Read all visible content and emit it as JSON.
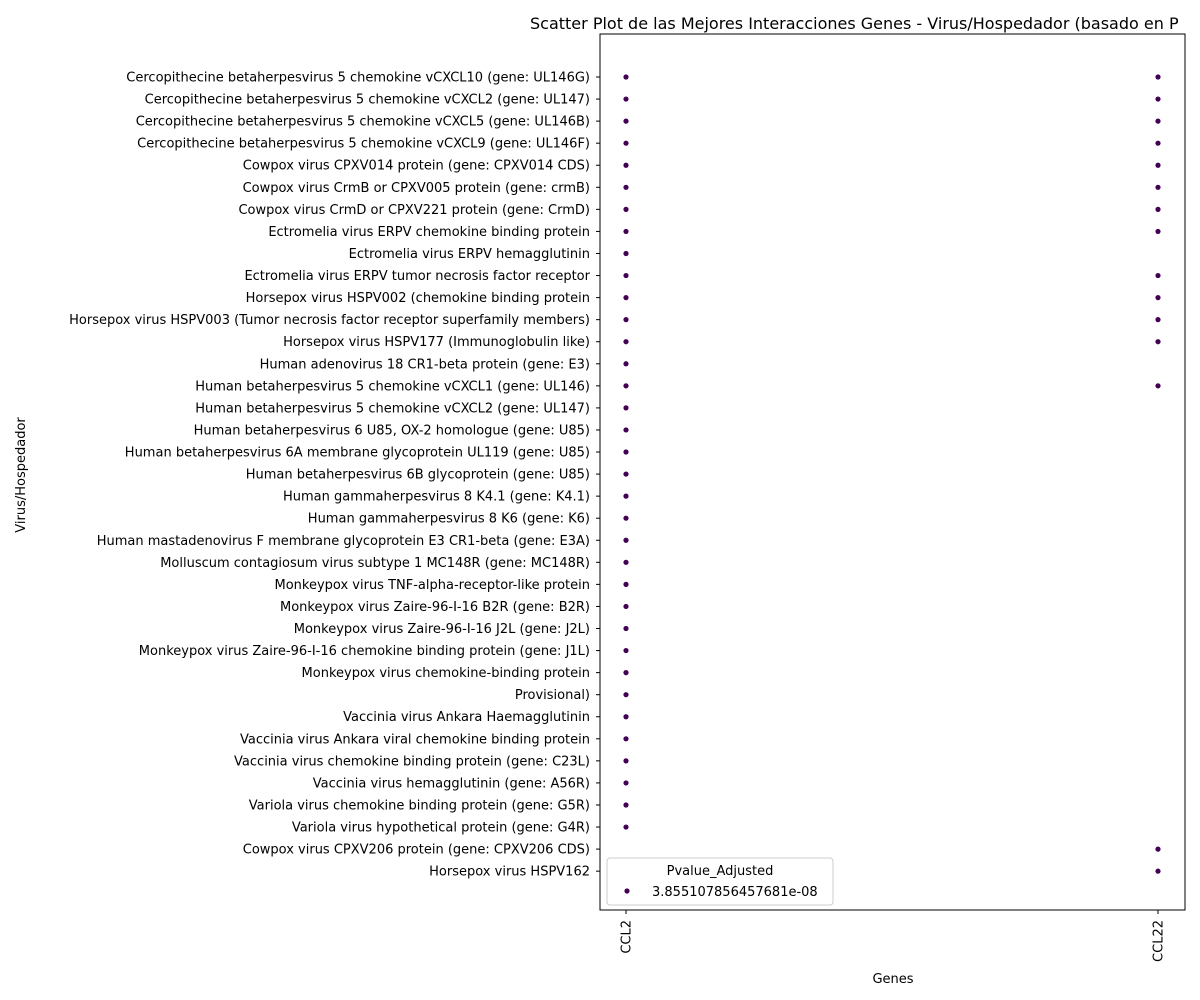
{
  "chart_data": {
    "type": "scatter",
    "title": "Scatter Plot de las Mejores Interacciones Genes - Virus/Hospedador (basado en P",
    "xlabel": "Genes",
    "ylabel": "Virus/Hospedador",
    "x_categories": [
      "CCL2",
      "CCL22"
    ],
    "y_categories": [
      "Cercopithecine betaherpesvirus 5 chemokine vCXCL10 (gene: UL146G)",
      "Cercopithecine betaherpesvirus 5 chemokine vCXCL2 (gene: UL147)",
      "Cercopithecine betaherpesvirus 5 chemokine vCXCL5 (gene: UL146B)",
      "Cercopithecine betaherpesvirus 5 chemokine vCXCL9 (gene: UL146F)",
      "Cowpox virus CPXV014 protein (gene: CPXV014 CDS)",
      "Cowpox virus CrmB or CPXV005 protein (gene: crmB)",
      "Cowpox virus CrmD or CPXV221 protein (gene: CrmD)",
      "Ectromelia virus ERPV chemokine binding protein",
      "Ectromelia virus ERPV hemagglutinin",
      "Ectromelia virus ERPV tumor necrosis factor receptor",
      "Horsepox virus HSPV002 (chemokine binding protein",
      "Horsepox virus HSPV003 (Tumor necrosis factor receptor superfamily members)",
      "Horsepox virus HSPV177 (Immunoglobulin like)",
      "Human adenovirus 18 CR1-beta protein (gene: E3)",
      "Human betaherpesvirus 5 chemokine vCXCL1 (gene: UL146)",
      "Human betaherpesvirus 5 chemokine vCXCL2 (gene: UL147)",
      "Human betaherpesvirus 6 U85, OX-2 homologue (gene: U85)",
      "Human betaherpesvirus 6A membrane glycoprotein UL119 (gene: U85)",
      "Human betaherpesvirus 6B glycoprotein (gene: U85)",
      "Human gammaherpesvirus 8 K4.1 (gene: K4.1)",
      "Human gammaherpesvirus 8 K6 (gene: K6)",
      "Human mastadenovirus F membrane glycoprotein E3 CR1-beta (gene: E3A)",
      "Molluscum contagiosum virus subtype 1 MC148R (gene: MC148R)",
      "Monkeypox virus TNF-alpha-receptor-like protein",
      "Monkeypox virus Zaire-96-I-16 B2R (gene: B2R)",
      "Monkeypox virus Zaire-96-I-16 J2L (gene: J2L)",
      "Monkeypox virus Zaire-96-I-16 chemokine binding protein (gene: J1L)",
      "Monkeypox virus chemokine-binding protein",
      "Provisional)",
      "Vaccinia virus Ankara Haemagglutinin",
      "Vaccinia virus Ankara viral chemokine binding protein",
      "Vaccinia virus chemokine binding protein (gene: C23L)",
      "Vaccinia virus hemagglutinin (gene: A56R)",
      "Variola virus chemokine binding protein (gene: G5R)",
      "Variola virus hypothetical protein (gene: G4R)",
      "Cowpox virus CPXV206 protein (gene: CPXV206 CDS)",
      "Horsepox virus HSPV162"
    ],
    "series": [
      {
        "name": "3.855107856457681e-08",
        "color": "#440154",
        "points": [
          {
            "x": "CCL2",
            "y": "Cercopithecine betaherpesvirus 5 chemokine vCXCL10 (gene: UL146G)"
          },
          {
            "x": "CCL2",
            "y": "Cercopithecine betaherpesvirus 5 chemokine vCXCL2 (gene: UL147)"
          },
          {
            "x": "CCL2",
            "y": "Cercopithecine betaherpesvirus 5 chemokine vCXCL5 (gene: UL146B)"
          },
          {
            "x": "CCL2",
            "y": "Cercopithecine betaherpesvirus 5 chemokine vCXCL9 (gene: UL146F)"
          },
          {
            "x": "CCL2",
            "y": "Cowpox virus CPXV014 protein (gene: CPXV014 CDS)"
          },
          {
            "x": "CCL2",
            "y": "Cowpox virus CrmB or CPXV005 protein (gene: crmB)"
          },
          {
            "x": "CCL2",
            "y": "Cowpox virus CrmD or CPXV221 protein (gene: CrmD)"
          },
          {
            "x": "CCL2",
            "y": "Ectromelia virus ERPV chemokine binding protein"
          },
          {
            "x": "CCL2",
            "y": "Ectromelia virus ERPV hemagglutinin"
          },
          {
            "x": "CCL2",
            "y": "Ectromelia virus ERPV tumor necrosis factor receptor"
          },
          {
            "x": "CCL2",
            "y": "Horsepox virus HSPV002 (chemokine binding protein"
          },
          {
            "x": "CCL2",
            "y": "Horsepox virus HSPV003 (Tumor necrosis factor receptor superfamily members)"
          },
          {
            "x": "CCL2",
            "y": "Horsepox virus HSPV177 (Immunoglobulin like)"
          },
          {
            "x": "CCL2",
            "y": "Human adenovirus 18 CR1-beta protein (gene: E3)"
          },
          {
            "x": "CCL2",
            "y": "Human betaherpesvirus 5 chemokine vCXCL1 (gene: UL146)"
          },
          {
            "x": "CCL2",
            "y": "Human betaherpesvirus 5 chemokine vCXCL2 (gene: UL147)"
          },
          {
            "x": "CCL2",
            "y": "Human betaherpesvirus 6 U85, OX-2 homologue (gene: U85)"
          },
          {
            "x": "CCL2",
            "y": "Human betaherpesvirus 6A membrane glycoprotein UL119 (gene: U85)"
          },
          {
            "x": "CCL2",
            "y": "Human betaherpesvirus 6B glycoprotein (gene: U85)"
          },
          {
            "x": "CCL2",
            "y": "Human gammaherpesvirus 8 K4.1 (gene: K4.1)"
          },
          {
            "x": "CCL2",
            "y": "Human gammaherpesvirus 8 K6 (gene: K6)"
          },
          {
            "x": "CCL2",
            "y": "Human mastadenovirus F membrane glycoprotein E3 CR1-beta (gene: E3A)"
          },
          {
            "x": "CCL2",
            "y": "Molluscum contagiosum virus subtype 1 MC148R (gene: MC148R)"
          },
          {
            "x": "CCL2",
            "y": "Monkeypox virus TNF-alpha-receptor-like protein"
          },
          {
            "x": "CCL2",
            "y": "Monkeypox virus Zaire-96-I-16 B2R (gene: B2R)"
          },
          {
            "x": "CCL2",
            "y": "Monkeypox virus Zaire-96-I-16 J2L (gene: J2L)"
          },
          {
            "x": "CCL2",
            "y": "Monkeypox virus Zaire-96-I-16 chemokine binding protein (gene: J1L)"
          },
          {
            "x": "CCL2",
            "y": "Monkeypox virus chemokine-binding protein"
          },
          {
            "x": "CCL2",
            "y": "Provisional)"
          },
          {
            "x": "CCL2",
            "y": "Vaccinia virus Ankara Haemagglutinin"
          },
          {
            "x": "CCL2",
            "y": "Vaccinia virus Ankara viral chemokine binding protein"
          },
          {
            "x": "CCL2",
            "y": "Vaccinia virus chemokine binding protein (gene: C23L)"
          },
          {
            "x": "CCL2",
            "y": "Vaccinia virus hemagglutinin (gene: A56R)"
          },
          {
            "x": "CCL2",
            "y": "Variola virus chemokine binding protein (gene: G5R)"
          },
          {
            "x": "CCL2",
            "y": "Variola virus hypothetical protein (gene: G4R)"
          },
          {
            "x": "CCL22",
            "y": "Cercopithecine betaherpesvirus 5 chemokine vCXCL10 (gene: UL146G)"
          },
          {
            "x": "CCL22",
            "y": "Cercopithecine betaherpesvirus 5 chemokine vCXCL2 (gene: UL147)"
          },
          {
            "x": "CCL22",
            "y": "Cercopithecine betaherpesvirus 5 chemokine vCXCL5 (gene: UL146B)"
          },
          {
            "x": "CCL22",
            "y": "Cercopithecine betaherpesvirus 5 chemokine vCXCL9 (gene: UL146F)"
          },
          {
            "x": "CCL22",
            "y": "Cowpox virus CPXV014 protein (gene: CPXV014 CDS)"
          },
          {
            "x": "CCL22",
            "y": "Cowpox virus CrmB or CPXV005 protein (gene: crmB)"
          },
          {
            "x": "CCL22",
            "y": "Cowpox virus CrmD or CPXV221 protein (gene: CrmD)"
          },
          {
            "x": "CCL22",
            "y": "Ectromelia virus ERPV chemokine binding protein"
          },
          {
            "x": "CCL22",
            "y": "Ectromelia virus ERPV tumor necrosis factor receptor"
          },
          {
            "x": "CCL22",
            "y": "Horsepox virus HSPV002 (chemokine binding protein"
          },
          {
            "x": "CCL22",
            "y": "Horsepox virus HSPV003 (Tumor necrosis factor receptor superfamily members)"
          },
          {
            "x": "CCL22",
            "y": "Horsepox virus HSPV177 (Immunoglobulin like)"
          },
          {
            "x": "CCL22",
            "y": "Human betaherpesvirus 5 chemokine vCXCL1 (gene: UL146)"
          },
          {
            "x": "CCL22",
            "y": "Cowpox virus CPXV206 protein (gene: CPXV206 CDS)"
          },
          {
            "x": "CCL22",
            "y": "Horsepox virus HSPV162"
          }
        ]
      }
    ],
    "legend": {
      "title": "Pvalue_Adjusted",
      "entries": [
        "3.855107856457681e-08"
      ],
      "position": "lower-left"
    },
    "grid": false
  }
}
